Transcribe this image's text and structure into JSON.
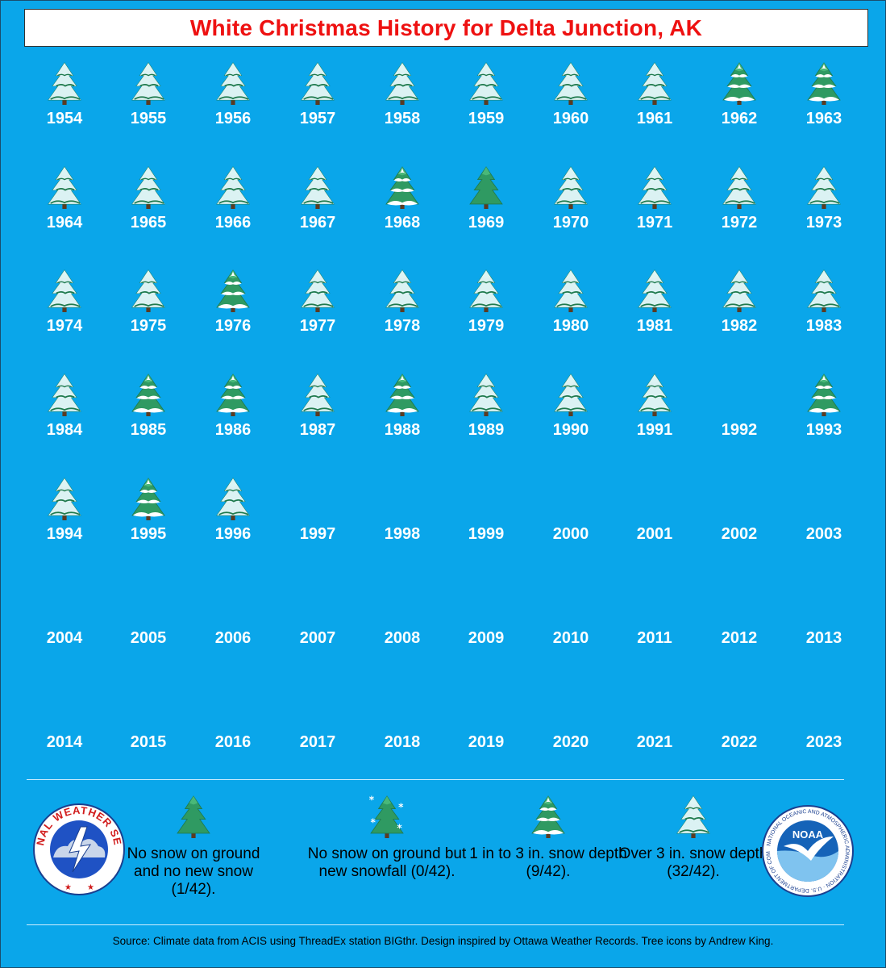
{
  "title": "White Christmas History for Delta Junction, AK",
  "colors": {
    "background": "#0aa6ea",
    "title_text": "#ee1111",
    "tree_green": "#2f8f5a",
    "snow": "#ffffff"
  },
  "years": [
    {
      "year": "1954",
      "category": "over3"
    },
    {
      "year": "1955",
      "category": "over3"
    },
    {
      "year": "1956",
      "category": "over3"
    },
    {
      "year": "1957",
      "category": "over3"
    },
    {
      "year": "1958",
      "category": "over3"
    },
    {
      "year": "1959",
      "category": "over3"
    },
    {
      "year": "1960",
      "category": "over3"
    },
    {
      "year": "1961",
      "category": "over3"
    },
    {
      "year": "1962",
      "category": "1to3"
    },
    {
      "year": "1963",
      "category": "1to3"
    },
    {
      "year": "1964",
      "category": "over3"
    },
    {
      "year": "1965",
      "category": "over3"
    },
    {
      "year": "1966",
      "category": "over3"
    },
    {
      "year": "1967",
      "category": "over3"
    },
    {
      "year": "1968",
      "category": "1to3"
    },
    {
      "year": "1969",
      "category": "nosnow"
    },
    {
      "year": "1970",
      "category": "over3"
    },
    {
      "year": "1971",
      "category": "over3"
    },
    {
      "year": "1972",
      "category": "over3"
    },
    {
      "year": "1973",
      "category": "over3"
    },
    {
      "year": "1974",
      "category": "over3"
    },
    {
      "year": "1975",
      "category": "over3"
    },
    {
      "year": "1976",
      "category": "1to3"
    },
    {
      "year": "1977",
      "category": "over3"
    },
    {
      "year": "1978",
      "category": "over3"
    },
    {
      "year": "1979",
      "category": "over3"
    },
    {
      "year": "1980",
      "category": "over3"
    },
    {
      "year": "1981",
      "category": "over3"
    },
    {
      "year": "1982",
      "category": "over3"
    },
    {
      "year": "1983",
      "category": "over3"
    },
    {
      "year": "1984",
      "category": "over3"
    },
    {
      "year": "1985",
      "category": "1to3"
    },
    {
      "year": "1986",
      "category": "1to3"
    },
    {
      "year": "1987",
      "category": "over3"
    },
    {
      "year": "1988",
      "category": "1to3"
    },
    {
      "year": "1989",
      "category": "over3"
    },
    {
      "year": "1990",
      "category": "over3"
    },
    {
      "year": "1991",
      "category": "over3"
    },
    {
      "year": "1992",
      "category": "none"
    },
    {
      "year": "1993",
      "category": "1to3"
    },
    {
      "year": "1994",
      "category": "over3"
    },
    {
      "year": "1995",
      "category": "1to3"
    },
    {
      "year": "1996",
      "category": "over3"
    },
    {
      "year": "1997",
      "category": "none"
    },
    {
      "year": "1998",
      "category": "none"
    },
    {
      "year": "1999",
      "category": "none"
    },
    {
      "year": "2000",
      "category": "none"
    },
    {
      "year": "2001",
      "category": "none"
    },
    {
      "year": "2002",
      "category": "none"
    },
    {
      "year": "2003",
      "category": "none"
    },
    {
      "year": "2004",
      "category": "none"
    },
    {
      "year": "2005",
      "category": "none"
    },
    {
      "year": "2006",
      "category": "none"
    },
    {
      "year": "2007",
      "category": "none"
    },
    {
      "year": "2008",
      "category": "none"
    },
    {
      "year": "2009",
      "category": "none"
    },
    {
      "year": "2010",
      "category": "none"
    },
    {
      "year": "2011",
      "category": "none"
    },
    {
      "year": "2012",
      "category": "none"
    },
    {
      "year": "2013",
      "category": "none"
    },
    {
      "year": "2014",
      "category": "none"
    },
    {
      "year": "2015",
      "category": "none"
    },
    {
      "year": "2016",
      "category": "none"
    },
    {
      "year": "2017",
      "category": "none"
    },
    {
      "year": "2018",
      "category": "none"
    },
    {
      "year": "2019",
      "category": "none"
    },
    {
      "year": "2020",
      "category": "none"
    },
    {
      "year": "2021",
      "category": "none"
    },
    {
      "year": "2022",
      "category": "none"
    },
    {
      "year": "2023",
      "category": "none"
    }
  ],
  "legend": [
    {
      "category": "nosnow",
      "label": "No snow on ground and no new snow (1/42)."
    },
    {
      "category": "newsnow",
      "label": "No snow on ground but new snowfall (0/42)."
    },
    {
      "category": "1to3",
      "label": "1 in to 3 in. snow depth (9/42)."
    },
    {
      "category": "over3",
      "label": "Over 3 in. snow depth (32/42)."
    }
  ],
  "logos": {
    "nws": {
      "icon": "nws-logo-icon",
      "text": "NATIONAL WEATHER SERVICE"
    },
    "noaa": {
      "icon": "noaa-logo-icon",
      "text": "NOAA",
      "ring_text": "NATIONAL OCEANIC AND ATMOSPHERIC ADMINISTRATION · U.S. DEPARTMENT OF COMMERCE"
    }
  },
  "source": "Source: Climate data from ACIS using ThreadEx station BIGthr. Design inspired by Ottawa Weather Records. Tree icons by Andrew King."
}
